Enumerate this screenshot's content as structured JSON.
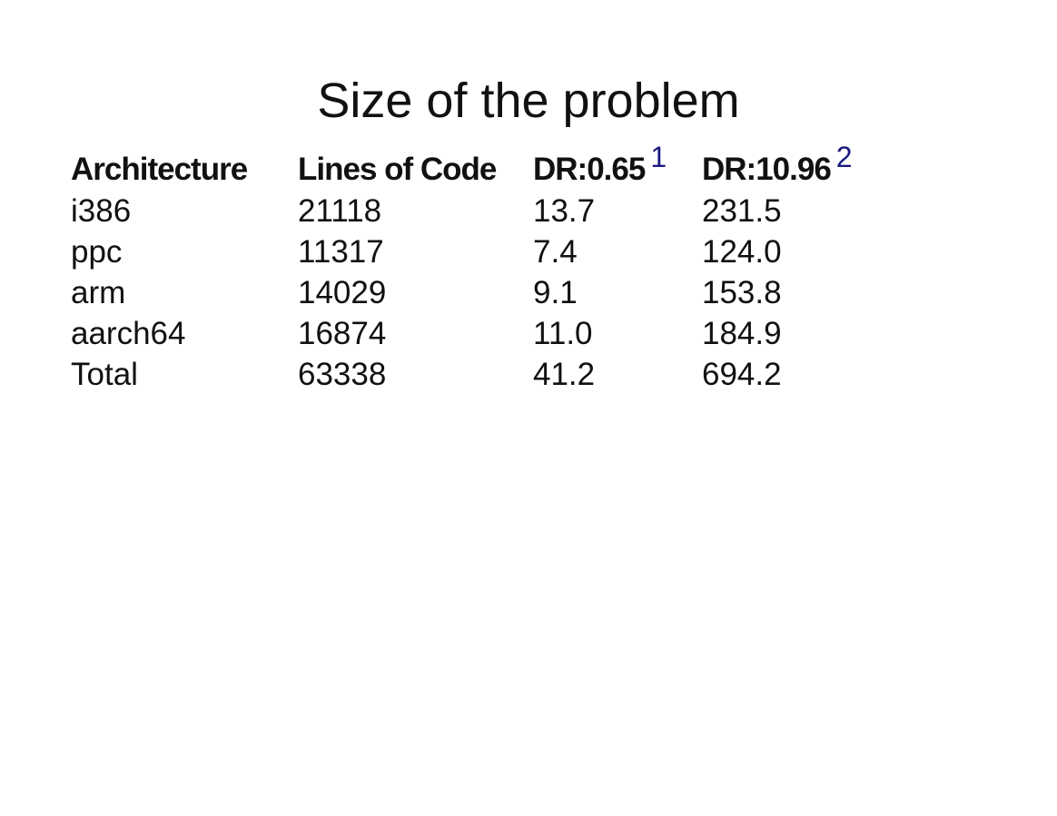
{
  "slide": {
    "title": "Size of the problem"
  },
  "table": {
    "headers": {
      "architecture": "Architecture",
      "lines_of_code": "Lines of Code",
      "dr1": "DR:0.65",
      "dr1_footnote": "1",
      "dr2": "DR:10.96",
      "dr2_footnote": "2"
    },
    "rows": [
      {
        "architecture": "i386",
        "lines_of_code": "21118",
        "dr1": "13.7",
        "dr2": "231.5"
      },
      {
        "architecture": "ppc",
        "lines_of_code": "11317",
        "dr1": "7.4",
        "dr2": "124.0"
      },
      {
        "architecture": "arm",
        "lines_of_code": "14029",
        "dr1": "9.1",
        "dr2": "153.8"
      },
      {
        "architecture": "aarch64",
        "lines_of_code": "16874",
        "dr1": "11.0",
        "dr2": "184.9"
      },
      {
        "architecture": "Total",
        "lines_of_code": "63338",
        "dr1": "41.2",
        "dr2": "694.2"
      }
    ]
  },
  "colors": {
    "text": "#111111",
    "footnote": "#1a1a80",
    "background": "#ffffff"
  }
}
